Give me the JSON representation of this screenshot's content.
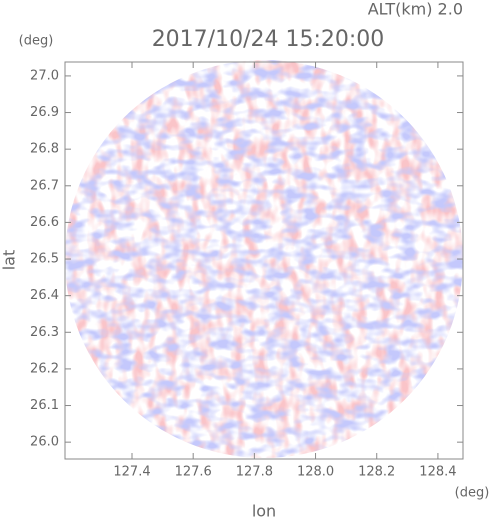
{
  "chart_data": {
    "type": "radar-ppi",
    "title": "2017/10/24 15:20:00",
    "subtitle": "ALT(km) 2.0",
    "x_label": "lon",
    "y_label": "lat",
    "x_unit": "(deg)",
    "y_unit": "(deg)",
    "xlim": [
      127.181,
      128.482
    ],
    "ylim": [
      25.954,
      27.038
    ],
    "xticks": [
      127.4,
      127.6,
      127.8,
      {
        "value": 128,
        "label": "128.0"
      },
      128.2,
      128.4
    ],
    "yticks": [
      {
        "value": 26,
        "label": "26.0"
      },
      26.1,
      26.2,
      26.3,
      26.4,
      26.5,
      26.6,
      26.7,
      26.8,
      26.9,
      {
        "value": 27,
        "label": "27.0"
      }
    ]
  }
}
